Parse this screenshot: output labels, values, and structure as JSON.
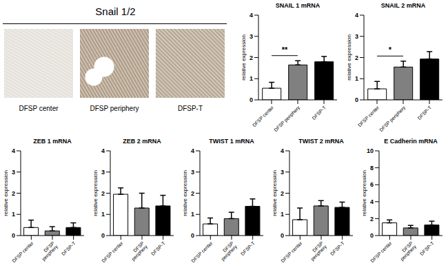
{
  "panel": {
    "title": "Snail 1/2",
    "labels": [
      "DFSP center",
      "DFSP periphery",
      "DFSP-T"
    ]
  },
  "chart_data": [
    {
      "type": "bar",
      "title": "SNAIL 1 mRNA",
      "y_label": "relative expression",
      "categories": [
        "DFSP center",
        "DFSP periphery",
        "DFSP-T"
      ],
      "values": [
        0.55,
        1.65,
        1.8
      ],
      "error": [
        0.28,
        0.2,
        0.25
      ],
      "colors": [
        "#ffffff",
        "#808080",
        "#000000"
      ],
      "ylim": [
        0,
        4
      ],
      "yticks": [
        0,
        1,
        2,
        3,
        4
      ],
      "significance": [
        {
          "label": "**",
          "between": [
            "DFSP center",
            "DFSP periphery"
          ]
        }
      ]
    },
    {
      "type": "bar",
      "title": "SNAIL 2 mRNA",
      "y_label": "relative expression",
      "categories": [
        "DFSP center",
        "DFSP periphery",
        "DFSP-T"
      ],
      "values": [
        0.52,
        1.55,
        1.93
      ],
      "error": [
        0.35,
        0.28,
        0.35
      ],
      "colors": [
        "#ffffff",
        "#808080",
        "#000000"
      ],
      "ylim": [
        0,
        4
      ],
      "yticks": [
        0,
        1,
        2,
        3,
        4
      ],
      "significance": [
        {
          "label": "*",
          "between": [
            "DFSP center",
            "DFSP periphery"
          ]
        }
      ]
    },
    {
      "type": "bar",
      "title": "ZEB 1 mRNA",
      "y_label": "relative expression",
      "categories": [
        "DFSP center",
        "DFSP periphery",
        "DFSP-T"
      ],
      "values": [
        0.38,
        0.22,
        0.38
      ],
      "error": [
        0.35,
        0.2,
        0.22
      ],
      "colors": [
        "#ffffff",
        "#808080",
        "#000000"
      ],
      "ylim": [
        0,
        4
      ],
      "yticks": [
        0,
        1,
        2,
        3,
        4
      ]
    },
    {
      "type": "bar",
      "title": "ZEB 2 mRNA",
      "y_label": "relative expression",
      "categories": [
        "DFSP center",
        "DFSP periphery",
        "DFSP-T"
      ],
      "values": [
        1.95,
        1.3,
        1.4
      ],
      "error": [
        0.3,
        0.7,
        0.5
      ],
      "colors": [
        "#ffffff",
        "#808080",
        "#000000"
      ],
      "ylim": [
        0,
        4
      ],
      "yticks": [
        0,
        1,
        2,
        3,
        4
      ]
    },
    {
      "type": "bar",
      "title": "TWIST 1 mRNA",
      "y_label": "relative expression",
      "categories": [
        "DFSP center",
        "DFSP periphery",
        "DFSP-T"
      ],
      "values": [
        0.55,
        0.8,
        1.38
      ],
      "error": [
        0.28,
        0.3,
        0.35
      ],
      "colors": [
        "#ffffff",
        "#808080",
        "#000000"
      ],
      "ylim": [
        0,
        4
      ],
      "yticks": [
        0,
        1,
        2,
        3,
        4
      ]
    },
    {
      "type": "bar",
      "title": "TWIST 2 mRNA",
      "y_label": "relative expression",
      "categories": [
        "DFSP center",
        "DFSP periphery",
        "DFSP-T"
      ],
      "values": [
        0.75,
        1.4,
        1.33
      ],
      "error": [
        0.55,
        0.25,
        0.25
      ],
      "colors": [
        "#ffffff",
        "#808080",
        "#000000"
      ],
      "ylim": [
        0,
        4
      ],
      "yticks": [
        0,
        1,
        2,
        3,
        4
      ]
    },
    {
      "type": "bar",
      "title": "E Cadherin mRNA",
      "y_label": "relative expression",
      "categories": [
        "DFSP center",
        "DFSP periphery",
        "DFSP-T"
      ],
      "values": [
        1.5,
        0.9,
        1.25
      ],
      "error": [
        0.35,
        0.3,
        0.45
      ],
      "colors": [
        "#ffffff",
        "#808080",
        "#000000"
      ],
      "ylim": [
        0,
        10
      ],
      "yticks": [
        0,
        2,
        4,
        6,
        8,
        10
      ]
    }
  ]
}
